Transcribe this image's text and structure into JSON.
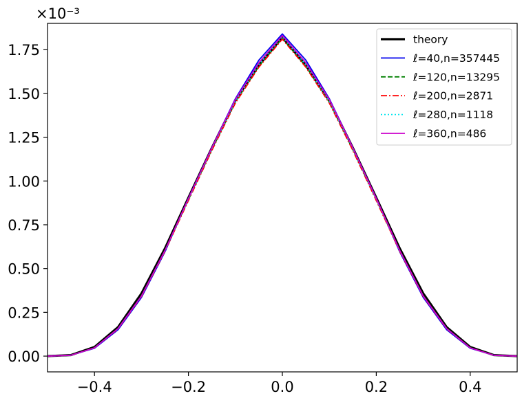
{
  "chart_data": {
    "type": "line",
    "title": "",
    "xlabel": "",
    "ylabel": "",
    "xlim": [
      -0.5,
      0.5
    ],
    "ylim": [
      -0.09,
      1.9
    ],
    "y_scale_label": "×10⁻³",
    "x_ticks": [
      -0.4,
      -0.2,
      0.0,
      0.2,
      0.4
    ],
    "x_tick_labels": [
      "−0.4",
      "−0.2",
      "0.0",
      "0.2",
      "0.4"
    ],
    "y_ticks": [
      0.0,
      0.25,
      0.5,
      0.75,
      1.0,
      1.25,
      1.5,
      1.75
    ],
    "y_tick_labels": [
      "0.00",
      "0.25",
      "0.50",
      "0.75",
      "1.00",
      "1.25",
      "1.50",
      "1.75"
    ],
    "grid": false,
    "legend_position": "top-right",
    "x": [
      -0.5,
      -0.45,
      -0.4,
      -0.35,
      -0.3,
      -0.25,
      -0.2,
      -0.15,
      -0.1,
      -0.05,
      0.0,
      0.05,
      0.1,
      0.15,
      0.2,
      0.25,
      0.3,
      0.35,
      0.4,
      0.45,
      0.5
    ],
    "series": [
      {
        "name": "theory",
        "color": "#000000",
        "style": "solid",
        "width": 3.2,
        "values": [
          0.0,
          0.006,
          0.052,
          0.165,
          0.358,
          0.615,
          0.905,
          1.19,
          1.46,
          1.66,
          1.82,
          1.66,
          1.46,
          1.19,
          0.905,
          0.615,
          0.358,
          0.165,
          0.052,
          0.006,
          0.0
        ]
      },
      {
        "name": "ℓ=40,n=357445",
        "color": "#0000ee",
        "style": "solid",
        "width": 1.8,
        "values": [
          0.0,
          0.005,
          0.045,
          0.15,
          0.335,
          0.595,
          0.9,
          1.19,
          1.47,
          1.69,
          1.84,
          1.69,
          1.47,
          1.19,
          0.9,
          0.595,
          0.335,
          0.15,
          0.045,
          0.005,
          0.0
        ]
      },
      {
        "name": "ℓ=120,n=13295",
        "color": "#008000",
        "style": "dashed",
        "width": 1.8,
        "values": [
          0.0,
          0.005,
          0.048,
          0.158,
          0.345,
          0.602,
          0.893,
          1.18,
          1.45,
          1.655,
          1.815,
          1.655,
          1.45,
          1.18,
          0.893,
          0.602,
          0.345,
          0.158,
          0.048,
          0.005,
          0.0
        ]
      },
      {
        "name": "ℓ=200,n=2871",
        "color": "#ff0000",
        "style": "dashdot",
        "width": 1.8,
        "values": [
          0.0,
          0.005,
          0.047,
          0.155,
          0.34,
          0.598,
          0.888,
          1.175,
          1.445,
          1.65,
          1.81,
          1.65,
          1.445,
          1.175,
          0.888,
          0.598,
          0.34,
          0.155,
          0.047,
          0.005,
          0.0
        ]
      },
      {
        "name": "ℓ=280,n=1118",
        "color": "#00e5ee",
        "style": "dotted",
        "width": 1.8,
        "values": [
          0.0,
          0.005,
          0.047,
          0.156,
          0.342,
          0.6,
          0.895,
          1.185,
          1.455,
          1.665,
          1.825,
          1.665,
          1.455,
          1.185,
          0.895,
          0.6,
          0.342,
          0.156,
          0.047,
          0.005,
          0.0
        ]
      },
      {
        "name": "ℓ=360,n=486",
        "color": "#cc00cc",
        "style": "solid",
        "width": 1.8,
        "values": [
          0.0,
          0.005,
          0.047,
          0.157,
          0.343,
          0.603,
          0.9,
          1.19,
          1.465,
          1.675,
          1.83,
          1.675,
          1.465,
          1.19,
          0.9,
          0.603,
          0.343,
          0.157,
          0.047,
          0.005,
          0.0
        ]
      }
    ]
  }
}
